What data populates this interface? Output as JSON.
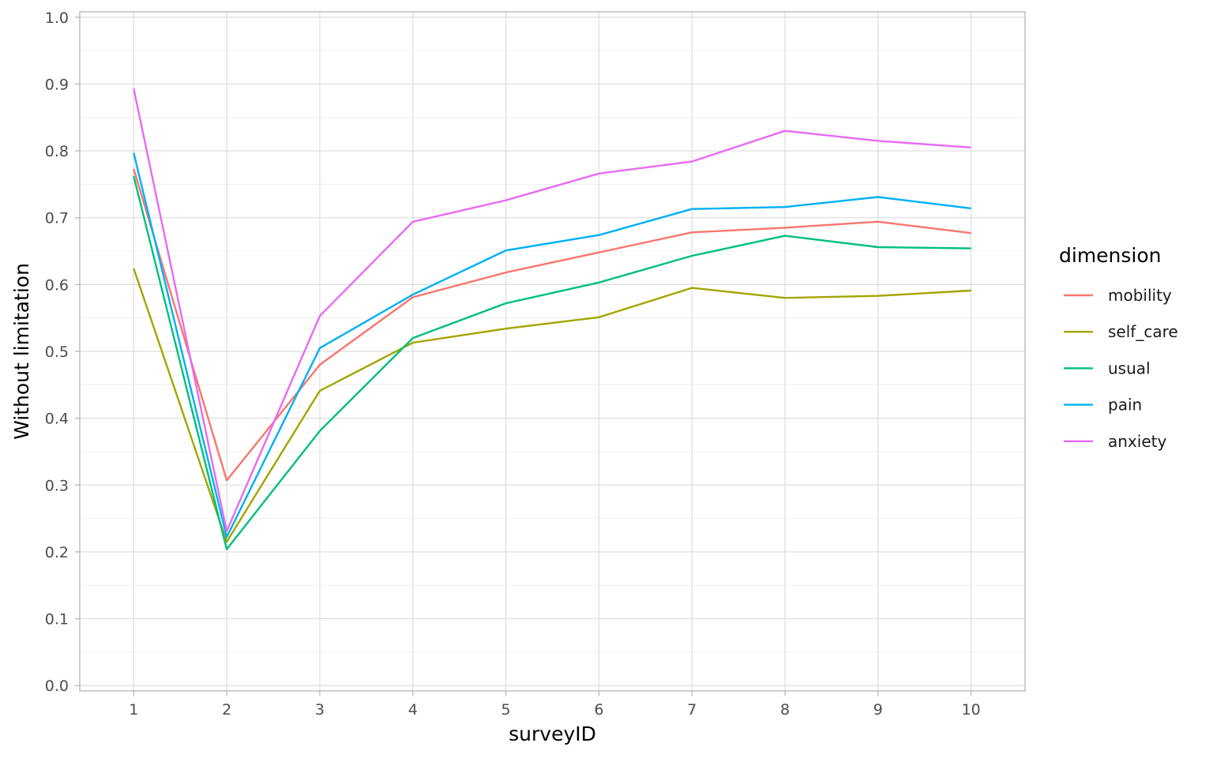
{
  "chart_data": {
    "type": "line",
    "xlabel": "surveyID",
    "ylabel": "Without limitation",
    "x": [
      1,
      2,
      3,
      4,
      5,
      6,
      7,
      8,
      9,
      10
    ],
    "xlim": [
      0.42,
      10.58
    ],
    "ylim": [
      -0.008,
      1.008
    ],
    "x_ticks": [
      "1",
      "2",
      "3",
      "4",
      "5",
      "6",
      "7",
      "8",
      "9",
      "10"
    ],
    "y_ticks": [
      "0.0",
      "0.1",
      "0.2",
      "0.3",
      "0.4",
      "0.5",
      "0.6",
      "0.7",
      "0.8",
      "0.9",
      "1.0"
    ],
    "grid": true,
    "legend": {
      "title": "dimension",
      "position": "right"
    },
    "series": [
      {
        "name": "mobility",
        "color": "#F8766D",
        "values": [
          0.773,
          0.307,
          0.48,
          0.581,
          0.618,
          0.648,
          0.678,
          0.685,
          0.694,
          0.677
        ]
      },
      {
        "name": "self_care",
        "color": "#A3A500",
        "values": [
          0.624,
          0.215,
          0.441,
          0.513,
          0.534,
          0.551,
          0.595,
          0.58,
          0.583,
          0.591
        ]
      },
      {
        "name": "usual",
        "color": "#00BF7D",
        "values": [
          0.762,
          0.204,
          0.381,
          0.52,
          0.572,
          0.603,
          0.643,
          0.673,
          0.656,
          0.654
        ]
      },
      {
        "name": "pain",
        "color": "#00B0F6",
        "values": [
          0.797,
          0.222,
          0.505,
          0.585,
          0.651,
          0.674,
          0.713,
          0.716,
          0.731,
          0.714
        ]
      },
      {
        "name": "anxiety",
        "color": "#E76BF3",
        "values": [
          0.893,
          0.231,
          0.553,
          0.694,
          0.726,
          0.766,
          0.784,
          0.83,
          0.815,
          0.805
        ]
      }
    ]
  }
}
